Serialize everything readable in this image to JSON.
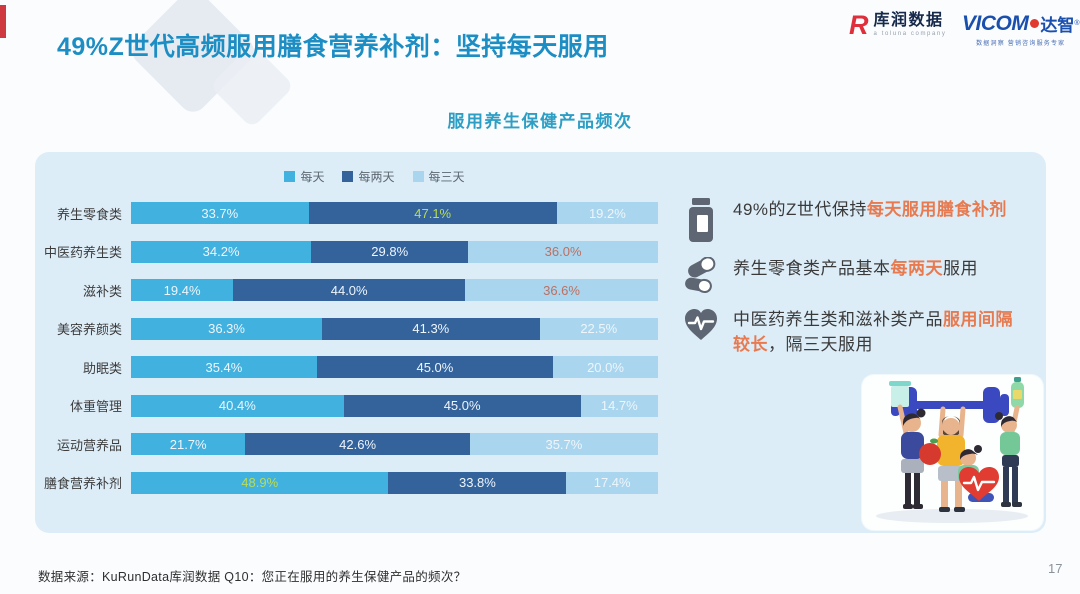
{
  "page": {
    "background": "#fafcfe",
    "page_number": "17"
  },
  "header": {
    "title": "49%Z世代高频服用膳食营养补剂：坚持每天服用",
    "title_color": "#1d8ec3",
    "accent_color": "#ce3a3f",
    "logos": {
      "kurun": {
        "mark": "R",
        "name": "库润数据",
        "tagline": "a toluna company"
      },
      "vicom": {
        "word": "VICOM",
        "suffix": "达智",
        "reg": "®",
        "tagline": "数据洞察 营销咨询服务专家"
      }
    }
  },
  "chart": {
    "title": "服用养生保健产品频次"
  },
  "chart_data": {
    "type": "bar",
    "orientation": "horizontal",
    "stacked": true,
    "title": "服用养生保健产品频次",
    "unit": "%",
    "xlim": [
      0,
      100
    ],
    "grid": false,
    "legend_position": "top",
    "categories": [
      "养生零食类",
      "中医药养生类",
      "滋补类",
      "美容养颜类",
      "助眠类",
      "体重管理",
      "运动营养品",
      "膳食营养补剂"
    ],
    "series": [
      {
        "name": "每天",
        "color": "#41b1df",
        "values": [
          33.7,
          34.2,
          19.4,
          36.3,
          35.4,
          40.4,
          21.7,
          48.9
        ]
      },
      {
        "name": "每两天",
        "color": "#34639c",
        "values": [
          47.1,
          29.8,
          44.0,
          41.3,
          45.0,
          45.0,
          42.6,
          33.8
        ]
      },
      {
        "name": "每三天",
        "color": "#a9d6ee",
        "values": [
          19.2,
          36.0,
          36.6,
          22.5,
          20.0,
          14.7,
          35.7,
          17.4
        ]
      }
    ],
    "label_styles": [
      [
        "plain",
        "green",
        "plain"
      ],
      [
        "plain",
        "plain",
        "orange"
      ],
      [
        "plain",
        "plain",
        "orange"
      ],
      [
        "plain",
        "plain",
        "plain"
      ],
      [
        "plain",
        "plain",
        "plain"
      ],
      [
        "plain",
        "plain",
        "plain"
      ],
      [
        "plain",
        "plain",
        "plain"
      ],
      [
        "green",
        "plain",
        "plain"
      ]
    ],
    "label_colors": {
      "plain": "#eef5fb",
      "green": "#b9dc55",
      "orange": "#bd6f61"
    }
  },
  "insights": [
    {
      "icon": "pill-bottle-icon",
      "parts": [
        {
          "text": "49%的Z世代保持",
          "em": false
        },
        {
          "text": "每天服用膳食补剂",
          "em": true
        }
      ]
    },
    {
      "icon": "capsules-icon",
      "parts": [
        {
          "text": "养生零食类产品基本",
          "em": false
        },
        {
          "text": "每两天",
          "em": true
        },
        {
          "text": "服用",
          "em": false
        }
      ]
    },
    {
      "icon": "heart-pulse-icon",
      "parts": [
        {
          "text": "中医药养生类和滋补类产品",
          "em": false
        },
        {
          "text": "服用间隔较长",
          "em": true
        },
        {
          "text": "，隔三天服用",
          "em": false
        }
      ]
    }
  ],
  "footer": {
    "source": "数据来源：KuRunData库润数据 Q10：您正在服用的养生保健产品的频次？"
  }
}
